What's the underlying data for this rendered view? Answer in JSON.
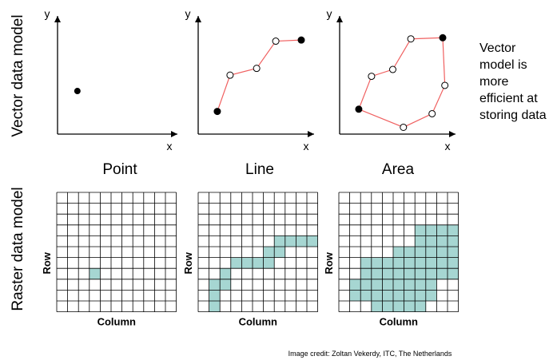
{
  "row_labels": {
    "vector": "Vector data model",
    "raster": "Raster data model"
  },
  "axis_labels": {
    "x": "x",
    "y": "y"
  },
  "grid_labels": {
    "row": "Row",
    "column": "Column"
  },
  "titles": [
    "Point",
    "Line",
    "Area"
  ],
  "note_lines": [
    "Vector",
    "model is",
    "more",
    "efficient at",
    "storing data"
  ],
  "credit": "Image credit: Zoltan Vekerdy, ITC, The Netherlands",
  "colors": {
    "line": "#f06060",
    "cell_fill": "#a6d6d2",
    "grid": "#000000"
  },
  "vector": {
    "point": {
      "points": [
        [
          0.18,
          0.38
        ]
      ]
    },
    "line": {
      "vertices": [
        [
          0.18,
          0.2
        ],
        [
          0.3,
          0.52
        ],
        [
          0.55,
          0.58
        ],
        [
          0.73,
          0.82
        ],
        [
          0.97,
          0.83
        ]
      ],
      "endpoints_filled": true
    },
    "area": {
      "vertices": [
        [
          0.18,
          0.22
        ],
        [
          0.3,
          0.51
        ],
        [
          0.5,
          0.57
        ],
        [
          0.67,
          0.84
        ],
        [
          0.97,
          0.85
        ],
        [
          0.99,
          0.43
        ],
        [
          0.87,
          0.18
        ],
        [
          0.6,
          0.06
        ]
      ],
      "filled_vertices": [
        0,
        4
      ]
    }
  },
  "raster": {
    "cols": 11,
    "rows": 11,
    "point": [
      [
        3,
        7
      ]
    ],
    "line": [
      [
        1,
        8
      ],
      [
        1,
        9
      ],
      [
        1,
        10
      ],
      [
        2,
        7
      ],
      [
        2,
        8
      ],
      [
        3,
        6
      ],
      [
        4,
        6
      ],
      [
        5,
        6
      ],
      [
        6,
        6
      ],
      [
        6,
        5
      ],
      [
        7,
        4
      ],
      [
        7,
        5
      ],
      [
        8,
        4
      ],
      [
        9,
        4
      ],
      [
        10,
        4
      ]
    ],
    "area": [
      [
        7,
        3
      ],
      [
        8,
        3
      ],
      [
        9,
        3
      ],
      [
        10,
        3
      ],
      [
        7,
        4
      ],
      [
        8,
        4
      ],
      [
        9,
        4
      ],
      [
        10,
        4
      ],
      [
        5,
        5
      ],
      [
        6,
        5
      ],
      [
        7,
        5
      ],
      [
        8,
        5
      ],
      [
        9,
        5
      ],
      [
        10,
        5
      ],
      [
        2,
        6
      ],
      [
        3,
        6
      ],
      [
        4,
        6
      ],
      [
        5,
        6
      ],
      [
        6,
        6
      ],
      [
        7,
        6
      ],
      [
        8,
        6
      ],
      [
        9,
        6
      ],
      [
        10,
        6
      ],
      [
        2,
        7
      ],
      [
        3,
        7
      ],
      [
        4,
        7
      ],
      [
        5,
        7
      ],
      [
        6,
        7
      ],
      [
        7,
        7
      ],
      [
        8,
        7
      ],
      [
        9,
        7
      ],
      [
        10,
        7
      ],
      [
        1,
        8
      ],
      [
        2,
        8
      ],
      [
        3,
        8
      ],
      [
        4,
        8
      ],
      [
        5,
        8
      ],
      [
        6,
        8
      ],
      [
        7,
        8
      ],
      [
        8,
        8
      ],
      [
        1,
        9
      ],
      [
        2,
        9
      ],
      [
        3,
        9
      ],
      [
        4,
        9
      ],
      [
        5,
        9
      ],
      [
        6,
        9
      ],
      [
        7,
        9
      ],
      [
        8,
        9
      ],
      [
        3,
        10
      ],
      [
        4,
        10
      ],
      [
        5,
        10
      ],
      [
        6,
        10
      ],
      [
        7,
        10
      ]
    ]
  }
}
